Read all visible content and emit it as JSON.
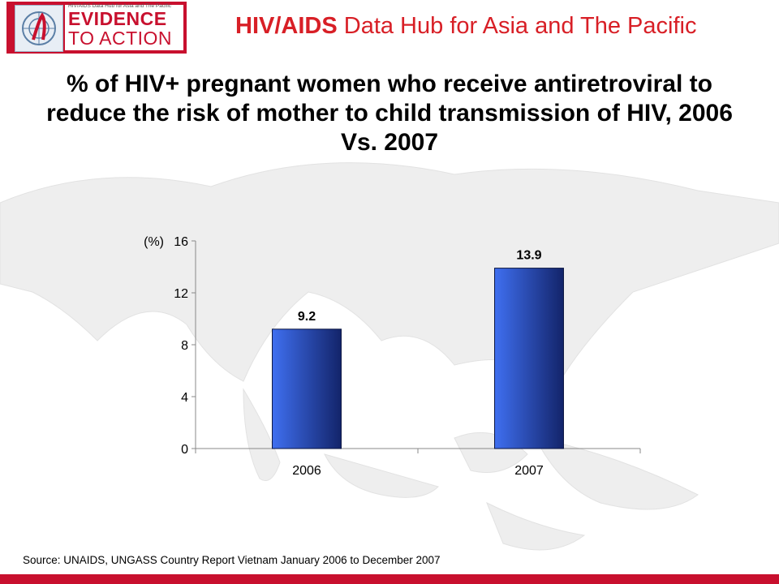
{
  "header": {
    "logo_small_text": "HIV/AIDS Data Hub for Asia and The Pacific",
    "logo_line1": "EVIDENCE",
    "logo_line2": "TO ACTION",
    "title_bold": "HIV/AIDS",
    "title_rest": " Data Hub for Asia and The Pacific"
  },
  "slide": {
    "title": "% of HIV+ pregnant women who receive antiretroviral to reduce the risk of mother to child transmission of HIV, 2006 Vs. 2007",
    "source": "Source: UNAIDS, UNGASS Country Report Vietnam January 2006 to December 2007"
  },
  "colors": {
    "brand_red": "#c8102e",
    "bar_light": "#3f6ff0",
    "bar_dark": "#13246a"
  },
  "chart_data": {
    "type": "bar",
    "title": "% of HIV+ pregnant women who receive antiretroviral to reduce the risk of mother to child transmission of HIV, 2006 Vs. 2007",
    "categories": [
      "2006",
      "2007"
    ],
    "values": [
      9.2,
      13.9
    ],
    "value_labels": [
      "9.2",
      "13.9"
    ],
    "ylabel": "(%)",
    "xlabel": "",
    "ylim": [
      0,
      16
    ],
    "yticks": [
      0,
      4,
      8,
      12,
      16
    ],
    "grid": false,
    "legend": "none"
  }
}
